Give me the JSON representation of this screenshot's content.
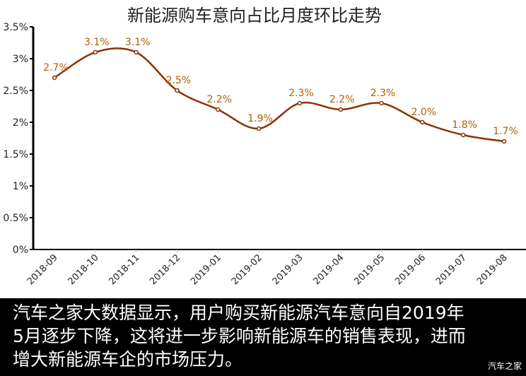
{
  "chart_data": {
    "type": "line",
    "title": "新能源购车意向占比月度环比走势",
    "categories": [
      "2018-09",
      "2018-10",
      "2018-11",
      "2018-12",
      "2019-01",
      "2019-02",
      "2019-03",
      "2019-04",
      "2019-05",
      "2019-06",
      "2019-07",
      "2019-08"
    ],
    "values": [
      2.7,
      3.1,
      3.1,
      2.5,
      2.2,
      1.9,
      2.3,
      2.2,
      2.3,
      2.0,
      1.8,
      1.7
    ],
    "data_labels": [
      "2.7%",
      "3.1%",
      "3.1%",
      "2.5%",
      "2.2%",
      "1.9%",
      "2.3%",
      "2.2%",
      "2.3%",
      "2.0%",
      "1.8%",
      "1.7%"
    ],
    "ylim": [
      0,
      3.5
    ],
    "yticks": [
      0,
      0.5,
      1,
      1.5,
      2,
      2.5,
      3,
      3.5
    ],
    "ytick_labels": [
      "0%",
      "0.5%",
      "1%",
      "1.5%",
      "2%",
      "2.5%",
      "3%",
      "3.5%"
    ],
    "xlabel": "",
    "ylabel": "",
    "grid": false,
    "smooth": true,
    "line_color": "#8a3300",
    "label_color": "#b35f00"
  },
  "caption": "汽车之家大数据显示，用户购买新能源汽车意向自2019年\n5月逐步下降，这将进一步影响新能源车的销售表现，进而\n增大新能源车企的市场压力。",
  "watermark": "汽车之家"
}
